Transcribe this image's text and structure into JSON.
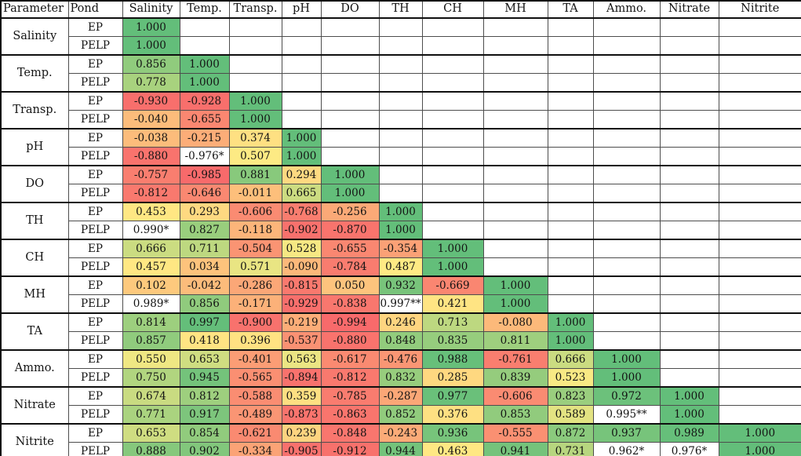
{
  "chart_data": {
    "type": "heatmap",
    "columns": [
      "Parameter",
      "Pond",
      "Salinity",
      "Temp.",
      "Transp.",
      "pH",
      "DO",
      "TH",
      "CH",
      "MH",
      "TA",
      "Ammo.",
      "Nitrate",
      "Nitrite"
    ],
    "ponds": [
      "EP",
      "PELP"
    ],
    "layout_hint": "lower-triangular correlation matrix; cells right of the diagonal are blank",
    "color_scale": {
      "negative_end": "#F8696B",
      "midpoint": "#FFEB84",
      "positive_end": "#63BE7A",
      "scale_min": -1,
      "scale_mid": 0.5,
      "scale_max": 1,
      "starred_cell_bg": "#FFFFFF",
      "grid_line": "#4d4d4d",
      "group_line": "#0f0f0f"
    },
    "groups": [
      {
        "parameter": "Salinity",
        "series": [
          {
            "pond": "EP",
            "values": [
              "1.000"
            ]
          },
          {
            "pond": "PELP",
            "values": [
              "1.000"
            ]
          }
        ]
      },
      {
        "parameter": "Temp.",
        "series": [
          {
            "pond": "EP",
            "values": [
              "0.856",
              "1.000"
            ]
          },
          {
            "pond": "PELP",
            "values": [
              "0.778",
              "1.000"
            ]
          }
        ]
      },
      {
        "parameter": "Transp.",
        "series": [
          {
            "pond": "EP",
            "values": [
              "-0.930",
              "-0.928",
              "1.000"
            ]
          },
          {
            "pond": "PELP",
            "values": [
              "-0.040",
              "-0.655",
              "1.000"
            ]
          }
        ]
      },
      {
        "parameter": "pH",
        "series": [
          {
            "pond": "EP",
            "values": [
              "-0.038",
              "-0.215",
              "0.374",
              "1.000"
            ]
          },
          {
            "pond": "PELP",
            "values": [
              "-0.880",
              "-0.976*",
              "0.507",
              "1.000"
            ]
          }
        ]
      },
      {
        "parameter": "DO",
        "series": [
          {
            "pond": "EP",
            "values": [
              "-0.757",
              "-0.985",
              "0.881",
              "0.294",
              "1.000"
            ]
          },
          {
            "pond": "PELP",
            "values": [
              "-0.812",
              "-0.646",
              "-0.011",
              "0.665",
              "1.000"
            ]
          }
        ]
      },
      {
        "parameter": "TH",
        "series": [
          {
            "pond": "EP",
            "values": [
              "0.453",
              "0.293",
              "-0.606",
              "-0.768",
              "-0.256",
              "1.000"
            ]
          },
          {
            "pond": "PELP",
            "values": [
              "0.990*",
              "0.827",
              "-0.118",
              "-0.902",
              "-0.870",
              "1.000"
            ]
          }
        ]
      },
      {
        "parameter": "CH",
        "series": [
          {
            "pond": "EP",
            "values": [
              "0.666",
              "0.711",
              "-0.504",
              "0.528",
              "-0.655",
              "-0.354",
              "1.000"
            ]
          },
          {
            "pond": "PELP",
            "values": [
              "0.457",
              "0.034",
              "0.571",
              "-0.090",
              "-0.784",
              "0.487",
              "1.000"
            ]
          }
        ]
      },
      {
        "parameter": "MH",
        "series": [
          {
            "pond": "EP",
            "values": [
              "0.102",
              "-0.042",
              "-0.286",
              "-0.815",
              "0.050",
              "0.932",
              "-0.669",
              "1.000"
            ]
          },
          {
            "pond": "PELP",
            "values": [
              "0.989*",
              "0.856",
              "-0.171",
              "-0.929",
              "-0.838",
              "0.997**",
              "0.421",
              "1.000"
            ]
          }
        ]
      },
      {
        "parameter": "TA",
        "series": [
          {
            "pond": "EP",
            "values": [
              "0.814",
              "0.997",
              "-0.900",
              "-0.219",
              "-0.994",
              "0.246",
              "0.713",
              "-0.080",
              "1.000"
            ]
          },
          {
            "pond": "PELP",
            "values": [
              "0.857",
              "0.418",
              "0.396",
              "-0.537",
              "-0.880",
              "0.848",
              "0.835",
              "0.811",
              "1.000"
            ]
          }
        ]
      },
      {
        "parameter": "Ammo.",
        "series": [
          {
            "pond": "EP",
            "values": [
              "0.550",
              "0.653",
              "-0.401",
              "0.563",
              "-0.617",
              "-0.476",
              "0.988",
              "-0.761",
              "0.666",
              "1.000"
            ]
          },
          {
            "pond": "PELP",
            "values": [
              "0.750",
              "0.945",
              "-0.565",
              "-0.894",
              "-0.812",
              "0.832",
              "0.285",
              "0.839",
              "0.523",
              "1.000"
            ]
          }
        ]
      },
      {
        "parameter": "Nitrate",
        "series": [
          {
            "pond": "EP",
            "values": [
              "0.674",
              "0.812",
              "-0.588",
              "0.359",
              "-0.785",
              "-0.287",
              "0.977",
              "-0.606",
              "0.823",
              "0.972",
              "1.000"
            ]
          },
          {
            "pond": "PELP",
            "values": [
              "0.771",
              "0.917",
              "-0.489",
              "-0.873",
              "-0.863",
              "0.852",
              "0.376",
              "0.853",
              "0.589",
              "0.995**",
              "1.000"
            ]
          }
        ]
      },
      {
        "parameter": "Nitrite",
        "series": [
          {
            "pond": "EP",
            "values": [
              "0.653",
              "0.854",
              "-0.621",
              "0.239",
              "-0.848",
              "-0.243",
              "0.936",
              "-0.555",
              "0.872",
              "0.937",
              "0.989",
              "1.000"
            ]
          },
          {
            "pond": "PELP",
            "values": [
              "0.888",
              "0.902",
              "-0.334",
              "-0.905",
              "-0.912",
              "0.944",
              "0.463",
              "0.941",
              "0.731",
              "0.962*",
              "0.976*",
              "1.000"
            ]
          }
        ]
      }
    ]
  }
}
